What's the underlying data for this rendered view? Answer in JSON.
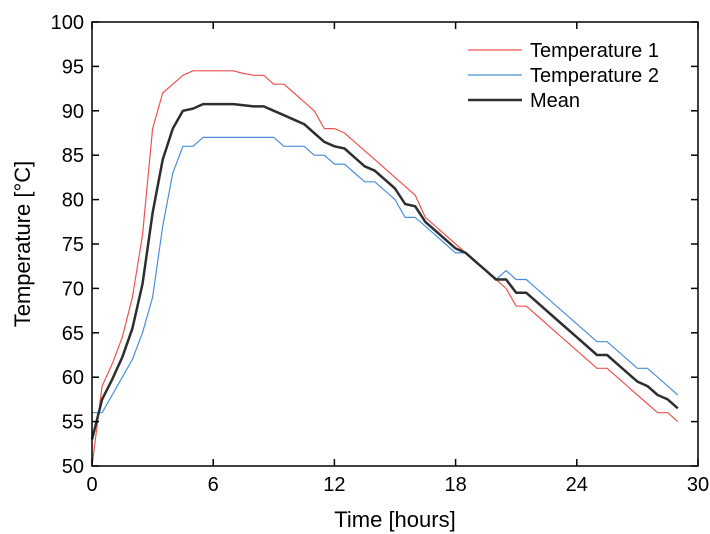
{
  "chart_data": {
    "type": "line",
    "xlabel": "Time [hours]",
    "ylabel": "Temperature [°C]",
    "xlim": [
      0,
      30
    ],
    "ylim": [
      50,
      100
    ],
    "xticks": [
      0,
      6,
      12,
      18,
      24,
      30
    ],
    "yticks": [
      50,
      55,
      60,
      65,
      70,
      75,
      80,
      85,
      90,
      95,
      100
    ],
    "grid": false,
    "legend_position": "top-right",
    "series": [
      {
        "name": "Temperature 1",
        "color": "#ef5350",
        "points": [
          [
            0,
            50
          ],
          [
            0.5,
            59
          ],
          [
            1,
            61.5
          ],
          [
            1.5,
            64.5
          ],
          [
            2,
            69
          ],
          [
            2.5,
            76
          ],
          [
            3,
            88
          ],
          [
            3.5,
            92
          ],
          [
            4,
            93
          ],
          [
            4.5,
            94
          ],
          [
            5,
            94.5
          ],
          [
            6,
            94.5
          ],
          [
            7,
            94.5
          ],
          [
            7.5,
            94.2
          ],
          [
            8,
            94
          ],
          [
            8.5,
            94
          ],
          [
            9,
            93
          ],
          [
            9.5,
            93
          ],
          [
            10,
            92
          ],
          [
            10.5,
            91
          ],
          [
            11,
            90
          ],
          [
            11.5,
            88
          ],
          [
            12,
            88
          ],
          [
            12.5,
            87.5
          ],
          [
            13,
            86.5
          ],
          [
            14,
            84.5
          ],
          [
            15,
            82.5
          ],
          [
            16,
            80.5
          ],
          [
            16.5,
            78
          ],
          [
            17,
            77
          ],
          [
            18,
            75
          ],
          [
            18.5,
            74
          ],
          [
            19,
            73
          ],
          [
            19.5,
            72
          ],
          [
            20,
            71
          ],
          [
            20.5,
            70
          ],
          [
            21,
            68
          ],
          [
            21.5,
            68
          ],
          [
            22,
            67
          ],
          [
            23,
            65
          ],
          [
            24,
            63
          ],
          [
            25,
            61
          ],
          [
            25.5,
            61
          ],
          [
            26,
            60
          ],
          [
            27,
            58
          ],
          [
            28,
            56
          ],
          [
            28.5,
            56
          ],
          [
            29,
            55
          ]
        ]
      },
      {
        "name": "Temperature 2",
        "color": "#4a90d9",
        "points": [
          [
            0,
            56
          ],
          [
            0.5,
            56
          ],
          [
            1,
            58
          ],
          [
            1.5,
            60
          ],
          [
            2,
            62
          ],
          [
            2.5,
            65
          ],
          [
            3,
            69
          ],
          [
            3.5,
            77
          ],
          [
            4,
            83
          ],
          [
            4.5,
            86
          ],
          [
            5,
            86
          ],
          [
            5.5,
            87
          ],
          [
            6,
            87
          ],
          [
            7,
            87
          ],
          [
            8,
            87
          ],
          [
            8.5,
            87
          ],
          [
            9,
            87
          ],
          [
            9.5,
            86
          ],
          [
            10,
            86
          ],
          [
            10.5,
            86
          ],
          [
            11,
            85
          ],
          [
            11.5,
            85
          ],
          [
            12,
            84
          ],
          [
            12.5,
            84
          ],
          [
            13,
            83
          ],
          [
            13.5,
            82
          ],
          [
            14,
            82
          ],
          [
            14.5,
            81
          ],
          [
            15,
            80
          ],
          [
            15.5,
            78
          ],
          [
            16,
            78
          ],
          [
            16.5,
            77
          ],
          [
            17,
            76
          ],
          [
            17.5,
            75
          ],
          [
            18,
            74
          ],
          [
            18.5,
            74
          ],
          [
            19,
            73
          ],
          [
            19.5,
            72
          ],
          [
            20,
            71
          ],
          [
            20.5,
            72
          ],
          [
            21,
            71
          ],
          [
            21.5,
            71
          ],
          [
            22,
            70
          ],
          [
            23,
            68
          ],
          [
            24,
            66
          ],
          [
            25,
            64
          ],
          [
            25.5,
            64
          ],
          [
            26,
            63
          ],
          [
            27,
            61
          ],
          [
            27.5,
            61
          ],
          [
            28,
            60
          ],
          [
            28.5,
            59
          ],
          [
            29,
            58
          ]
        ]
      },
      {
        "name": "Mean",
        "color": "#2e2e2e",
        "points": [
          [
            0,
            53
          ],
          [
            0.5,
            57.5
          ],
          [
            1,
            59.75
          ],
          [
            1.5,
            62.25
          ],
          [
            2,
            65.5
          ],
          [
            2.5,
            70.5
          ],
          [
            3,
            78.5
          ],
          [
            3.5,
            84.5
          ],
          [
            4,
            88
          ],
          [
            4.5,
            90
          ],
          [
            5,
            90.25
          ],
          [
            5.5,
            90.75
          ],
          [
            6,
            90.75
          ],
          [
            7,
            90.75
          ],
          [
            8,
            90.5
          ],
          [
            8.5,
            90.5
          ],
          [
            9,
            90
          ],
          [
            9.5,
            89.5
          ],
          [
            10,
            89
          ],
          [
            10.5,
            88.5
          ],
          [
            11,
            87.5
          ],
          [
            11.5,
            86.5
          ],
          [
            12,
            86
          ],
          [
            12.5,
            85.75
          ],
          [
            13,
            84.75
          ],
          [
            13.5,
            83.75
          ],
          [
            14,
            83.25
          ],
          [
            14.5,
            82.25
          ],
          [
            15,
            81.25
          ],
          [
            15.5,
            79.5
          ],
          [
            16,
            79.25
          ],
          [
            16.5,
            77.5
          ],
          [
            17,
            76.5
          ],
          [
            18,
            74.5
          ],
          [
            18.5,
            74
          ],
          [
            19,
            73
          ],
          [
            19.5,
            72
          ],
          [
            20,
            71
          ],
          [
            20.5,
            71
          ],
          [
            21,
            69.5
          ],
          [
            21.5,
            69.5
          ],
          [
            22,
            68.5
          ],
          [
            23,
            66.5
          ],
          [
            24,
            64.5
          ],
          [
            25,
            62.5
          ],
          [
            25.5,
            62.5
          ],
          [
            26,
            61.5
          ],
          [
            27,
            59.5
          ],
          [
            27.5,
            59
          ],
          [
            28,
            58
          ],
          [
            28.5,
            57.5
          ],
          [
            29,
            56.5
          ]
        ]
      }
    ]
  }
}
